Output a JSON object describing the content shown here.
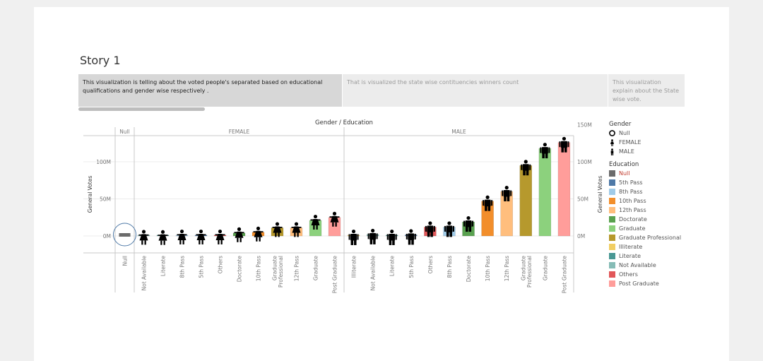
{
  "story": {
    "title": "Story 1",
    "points": [
      "This visualization is telling about the voted  people's separated based on educational qualifications and gender wise respectively .",
      "That is visualized the state wise contituencies winners count",
      "This visualization  explain about the State wise vote."
    ]
  },
  "chart_data": {
    "type": "bar",
    "title": "Gender / Education",
    "ylabel": "General Votes",
    "ylim": [
      -12,
      150
    ],
    "y_unit": "M",
    "left_ticks": [
      "100M",
      "50M",
      "0M"
    ],
    "right_ticks": [
      "150M",
      "100M",
      "50M",
      "0M"
    ],
    "grid": true,
    "legend_position": "right",
    "panels": [
      {
        "header": "Null",
        "bars": [
          {
            "education": "Null",
            "gender": "Null",
            "value": 2.5
          }
        ]
      },
      {
        "header": "FEMALE",
        "bars": [
          {
            "education": "Not Available",
            "gender": "FEMALE",
            "value": 0.6
          },
          {
            "education": "Literate",
            "gender": "FEMALE",
            "value": 0.3
          },
          {
            "education": "8th Pass",
            "gender": "FEMALE",
            "value": 1.0
          },
          {
            "education": "5th Pass",
            "gender": "FEMALE",
            "value": 1.0
          },
          {
            "education": "Others",
            "gender": "FEMALE",
            "value": 1.0
          },
          {
            "education": "Doctorate",
            "gender": "FEMALE",
            "value": 4.0
          },
          {
            "education": "10th Pass",
            "gender": "FEMALE",
            "value": 5.0
          },
          {
            "education": "Graduate Professional",
            "gender": "FEMALE",
            "value": 11.0
          },
          {
            "education": "12th Pass",
            "gender": "FEMALE",
            "value": 11.0
          },
          {
            "education": "Graduate",
            "gender": "FEMALE",
            "value": 21.0
          },
          {
            "education": "Post Graduate",
            "gender": "FEMALE",
            "value": 25.0
          }
        ]
      },
      {
        "header": "MALE",
        "bars": [
          {
            "education": "Illiterate",
            "gender": "MALE",
            "value": 1.0
          },
          {
            "education": "Not Available",
            "gender": "MALE",
            "value": 2.0
          },
          {
            "education": "Literate",
            "gender": "MALE",
            "value": 1.0
          },
          {
            "education": "5th Pass",
            "gender": "MALE",
            "value": 1.5
          },
          {
            "education": "Others",
            "gender": "MALE",
            "value": 12.0
          },
          {
            "education": "8th Pass",
            "gender": "MALE",
            "value": 12.0
          },
          {
            "education": "Doctorate",
            "gender": "MALE",
            "value": 19.0
          },
          {
            "education": "10th Pass",
            "gender": "MALE",
            "value": 47.0
          },
          {
            "education": "12th Pass",
            "gender": "MALE",
            "value": 60.0
          },
          {
            "education": "Graduate Professional",
            "gender": "MALE",
            "value": 95.0
          },
          {
            "education": "Graduate",
            "gender": "MALE",
            "value": 118.0
          },
          {
            "education": "Post Graduate",
            "gender": "MALE",
            "value": 126.0
          }
        ]
      }
    ]
  },
  "legend": {
    "gender_title": "Gender",
    "gender_items": [
      {
        "label": "Null",
        "shape": "circle"
      },
      {
        "label": "FEMALE",
        "shape": "female-figure"
      },
      {
        "label": "MALE",
        "shape": "male-figure"
      }
    ],
    "education_title": "Education",
    "education_items": [
      {
        "label": "Null",
        "color": "#6b6b6b"
      },
      {
        "label": "5th Pass",
        "color": "#4e79a7"
      },
      {
        "label": "8th Pass",
        "color": "#a0cbe8"
      },
      {
        "label": "10th Pass",
        "color": "#f28e2b"
      },
      {
        "label": "12th Pass",
        "color": "#ffbe7d"
      },
      {
        "label": "Doctorate",
        "color": "#59a14f"
      },
      {
        "label": "Graduate",
        "color": "#8cd17d"
      },
      {
        "label": "Graduate Professional",
        "color": "#b6992d"
      },
      {
        "label": "Illiterate",
        "color": "#f1ce63"
      },
      {
        "label": "Literate",
        "color": "#499894"
      },
      {
        "label": "Not Available",
        "color": "#86bcb6"
      },
      {
        "label": "Others",
        "color": "#e15759"
      },
      {
        "label": "Post Graduate",
        "color": "#ff9d9a"
      }
    ]
  },
  "colors": {
    "null_label": "#c0392b",
    "axis": "#c8c8c8",
    "text": "#777777"
  }
}
